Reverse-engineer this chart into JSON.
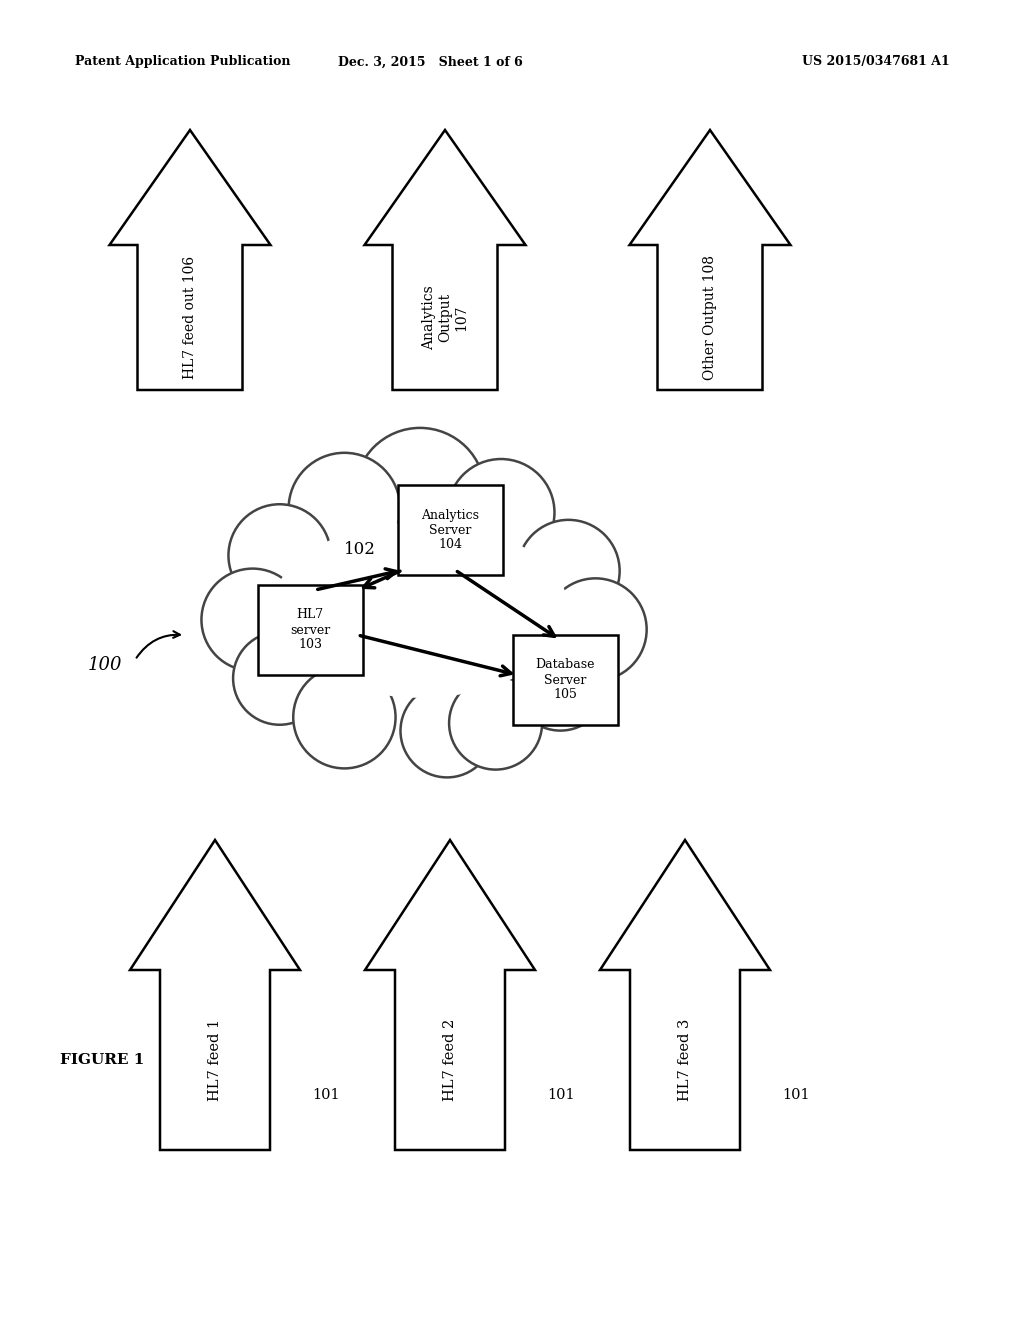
{
  "title_left": "Patent Application Publication",
  "title_center": "Dec. 3, 2015   Sheet 1 of 6",
  "title_right": "US 2015/0347681 A1",
  "figure_label": "FIGURE 1",
  "cloud_label": "102",
  "bg_color": "#ffffff",
  "bottom_arrows": [
    {
      "label": "HL7 feed 1",
      "ref": "101"
    },
    {
      "label": "HL7 feed 2",
      "ref": "101"
    },
    {
      "label": "HL7 feed 3",
      "ref": "101"
    }
  ],
  "top_arrows": [
    {
      "label": "HL7 feed out 106"
    },
    {
      "label": "Analytics\nOutput\n107"
    },
    {
      "label": "Other Output 108"
    }
  ],
  "boxes": [
    {
      "label": "HL7\nserver\n103"
    },
    {
      "label": "Analytics\nServer\n104"
    },
    {
      "label": "Database\nServer\n105"
    }
  ]
}
